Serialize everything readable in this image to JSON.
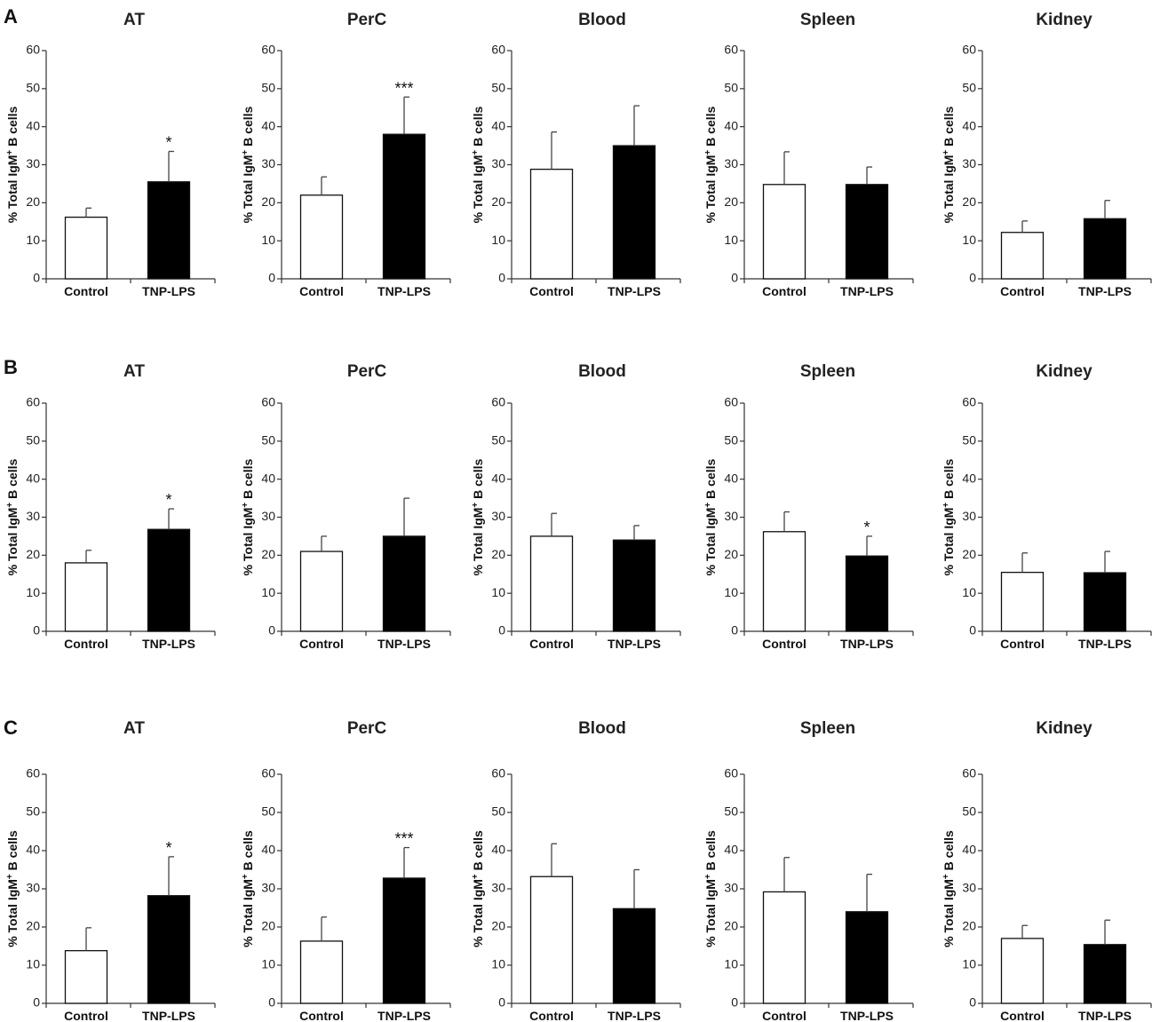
{
  "figure": {
    "ylabel_prefix": "% Total IgM",
    "ylabel_sup": "+",
    "ylabel_suffix": " B cells",
    "categories": [
      "Control",
      "TNP-LPS"
    ],
    "yticks": [
      "0",
      "10",
      "20",
      "30",
      "40",
      "50",
      "60"
    ],
    "colors": {
      "control": "#ffffff",
      "treated": "#000000",
      "stroke": "#111111"
    }
  },
  "chart_data": [
    {
      "panel": "A",
      "type": "bar",
      "charts": [
        {
          "title": "AT",
          "categories": [
            "Control",
            "TNP-LPS"
          ],
          "values": [
            16.2,
            25.5
          ],
          "errors": [
            2.4,
            8.0
          ],
          "sig": [
            "",
            "*"
          ],
          "ylim": [
            0,
            60
          ]
        },
        {
          "title": "PerC",
          "categories": [
            "Control",
            "TNP-LPS"
          ],
          "values": [
            22.0,
            38.0
          ],
          "errors": [
            4.8,
            9.8
          ],
          "sig": [
            "",
            "***"
          ],
          "ylim": [
            0,
            60
          ]
        },
        {
          "title": "Blood",
          "categories": [
            "Control",
            "TNP-LPS"
          ],
          "values": [
            28.8,
            35.0
          ],
          "errors": [
            9.8,
            10.5
          ],
          "sig": [
            "",
            ""
          ],
          "ylim": [
            0,
            60
          ]
        },
        {
          "title": "Spleen",
          "categories": [
            "Control",
            "TNP-LPS"
          ],
          "values": [
            24.8,
            24.8
          ],
          "errors": [
            8.6,
            4.6
          ],
          "sig": [
            "",
            ""
          ],
          "ylim": [
            0,
            60
          ]
        },
        {
          "title": "Kidney",
          "categories": [
            "Control",
            "TNP-LPS"
          ],
          "values": [
            12.2,
            15.8
          ],
          "errors": [
            3.0,
            4.8
          ],
          "sig": [
            "",
            ""
          ],
          "ylim": [
            0,
            60
          ]
        }
      ]
    },
    {
      "panel": "B",
      "type": "bar",
      "charts": [
        {
          "title": "AT",
          "categories": [
            "Control",
            "TNP-LPS"
          ],
          "values": [
            18.0,
            26.8
          ],
          "errors": [
            3.3,
            5.4
          ],
          "sig": [
            "",
            "*"
          ],
          "ylim": [
            0,
            60
          ]
        },
        {
          "title": "PerC",
          "categories": [
            "Control",
            "TNP-LPS"
          ],
          "values": [
            21.0,
            25.0
          ],
          "errors": [
            4.0,
            10.0
          ],
          "sig": [
            "",
            ""
          ],
          "ylim": [
            0,
            60
          ]
        },
        {
          "title": "Blood",
          "categories": [
            "Control",
            "TNP-LPS"
          ],
          "values": [
            25.0,
            24.0
          ],
          "errors": [
            6.0,
            3.8
          ],
          "sig": [
            "",
            ""
          ],
          "ylim": [
            0,
            60
          ]
        },
        {
          "title": "Spleen",
          "categories": [
            "Control",
            "TNP-LPS"
          ],
          "values": [
            26.2,
            19.8
          ],
          "errors": [
            5.2,
            5.2
          ],
          "sig": [
            "",
            "*"
          ],
          "ylim": [
            0,
            60
          ]
        },
        {
          "title": "Kidney",
          "categories": [
            "Control",
            "TNP-LPS"
          ],
          "values": [
            15.5,
            15.4
          ],
          "errors": [
            5.1,
            5.6
          ],
          "sig": [
            "",
            ""
          ],
          "ylim": [
            0,
            60
          ]
        }
      ]
    },
    {
      "panel": "C",
      "type": "bar",
      "charts": [
        {
          "title": "AT",
          "categories": [
            "Control",
            "TNP-LPS"
          ],
          "values": [
            13.8,
            28.2
          ],
          "errors": [
            6.0,
            10.2
          ],
          "sig": [
            "",
            "*"
          ],
          "ylim": [
            0,
            60
          ]
        },
        {
          "title": "PerC",
          "categories": [
            "Control",
            "TNP-LPS"
          ],
          "values": [
            16.3,
            32.8
          ],
          "errors": [
            6.3,
            8.0
          ],
          "sig": [
            "",
            "***"
          ],
          "ylim": [
            0,
            60
          ]
        },
        {
          "title": "Blood",
          "categories": [
            "Control",
            "TNP-LPS"
          ],
          "values": [
            33.2,
            24.8
          ],
          "errors": [
            8.6,
            10.2
          ],
          "sig": [
            "",
            ""
          ],
          "ylim": [
            0,
            60
          ]
        },
        {
          "title": "Spleen",
          "categories": [
            "Control",
            "TNP-LPS"
          ],
          "values": [
            29.2,
            24.0
          ],
          "errors": [
            9.0,
            9.8
          ],
          "sig": [
            "",
            ""
          ],
          "ylim": [
            0,
            60
          ]
        },
        {
          "title": "Kidney",
          "categories": [
            "Control",
            "TNP-LPS"
          ],
          "values": [
            17.0,
            15.4
          ],
          "errors": [
            3.4,
            6.4
          ],
          "sig": [
            "",
            ""
          ],
          "ylim": [
            0,
            60
          ]
        }
      ]
    }
  ]
}
